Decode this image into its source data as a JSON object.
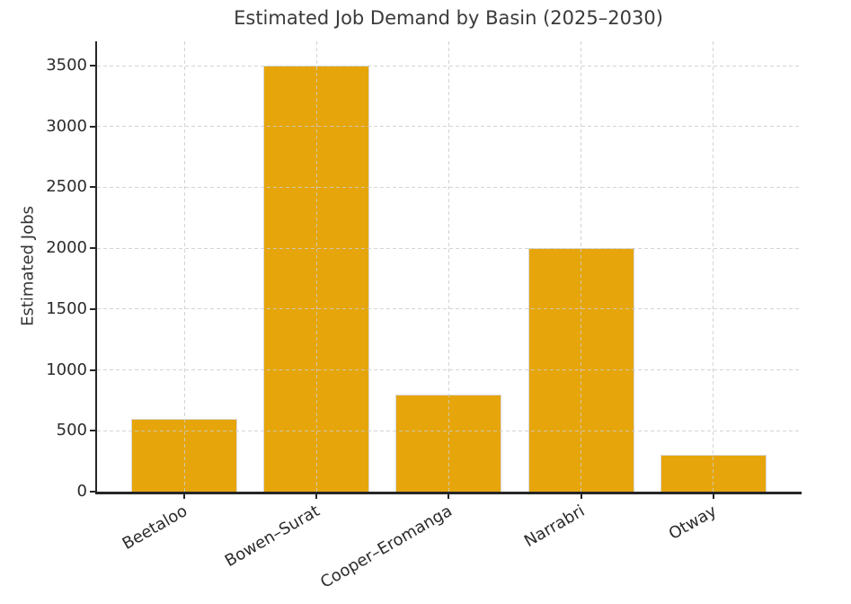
{
  "chart_data": {
    "type": "bar",
    "title": "Estimated Job Demand by Basin (2025–2030)",
    "ylabel": "Estimated Jobs",
    "xlabel": "",
    "categories": [
      "Beetaloo",
      "Bowen–Surat",
      "Cooper–Eromanga",
      "Narrabri",
      "Otway"
    ],
    "values": [
      600,
      3500,
      800,
      2000,
      300
    ],
    "yticks": [
      0,
      500,
      1000,
      1500,
      2000,
      2500,
      3000,
      3500
    ],
    "ylim": [
      0,
      3700
    ],
    "grid": true,
    "grid_style": "dashed",
    "legend": false,
    "bar_color": "#E6A50A",
    "bar_edge_color": "#D9D9D9",
    "text_color": "#3A3A3A",
    "tick_text_color": "#2B2B2B",
    "spine_color": "#262626",
    "grid_color": "#CCCCCC",
    "background_color": "#FFFFFF"
  }
}
